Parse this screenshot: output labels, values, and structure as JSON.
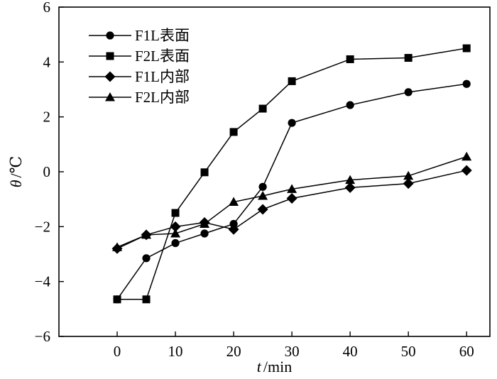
{
  "chart_data": {
    "type": "line",
    "title": "",
    "xlabel": {
      "var": "t",
      "unit": "/min"
    },
    "ylabel": {
      "var": "θ",
      "unit": "/℃"
    },
    "xlim": [
      -10,
      64
    ],
    "ylim": [
      -6,
      6
    ],
    "xticks": [
      0,
      10,
      20,
      30,
      40,
      50,
      60
    ],
    "yticks": [
      -6,
      -4,
      -2,
      0,
      2,
      4,
      6
    ],
    "ytick_labels": [
      "−6",
      "−4",
      "−2",
      "0",
      "2",
      "4",
      "6"
    ],
    "grid": false,
    "legend_position": "top-left",
    "series": [
      {
        "name": "F1L表面",
        "marker": "circle",
        "x": [
          0,
          5,
          10,
          15,
          20,
          25,
          30,
          40,
          50,
          60
        ],
        "y": [
          -4.65,
          -3.15,
          -2.6,
          -2.25,
          -1.9,
          -0.55,
          1.78,
          2.43,
          2.9,
          3.2
        ]
      },
      {
        "name": "F2L表面",
        "marker": "square",
        "x": [
          0,
          5,
          10,
          15,
          20,
          25,
          30,
          40,
          50,
          60
        ],
        "y": [
          -4.65,
          -4.65,
          -1.5,
          -0.02,
          1.45,
          2.3,
          3.3,
          4.1,
          4.15,
          4.5
        ]
      },
      {
        "name": "F1L内部",
        "marker": "diamond",
        "x": [
          0,
          5,
          10,
          15,
          20,
          25,
          30,
          40,
          50,
          60
        ],
        "y": [
          -2.8,
          -2.3,
          -2.0,
          -1.85,
          -2.1,
          -1.37,
          -0.97,
          -0.58,
          -0.43,
          0.05
        ]
      },
      {
        "name": "F2L内部",
        "marker": "triangle",
        "x": [
          0,
          5,
          10,
          15,
          20,
          25,
          30,
          40,
          50,
          60
        ],
        "y": [
          -2.75,
          -2.3,
          -2.25,
          -1.9,
          -1.1,
          -0.88,
          -0.63,
          -0.3,
          -0.15,
          0.55
        ]
      }
    ]
  }
}
